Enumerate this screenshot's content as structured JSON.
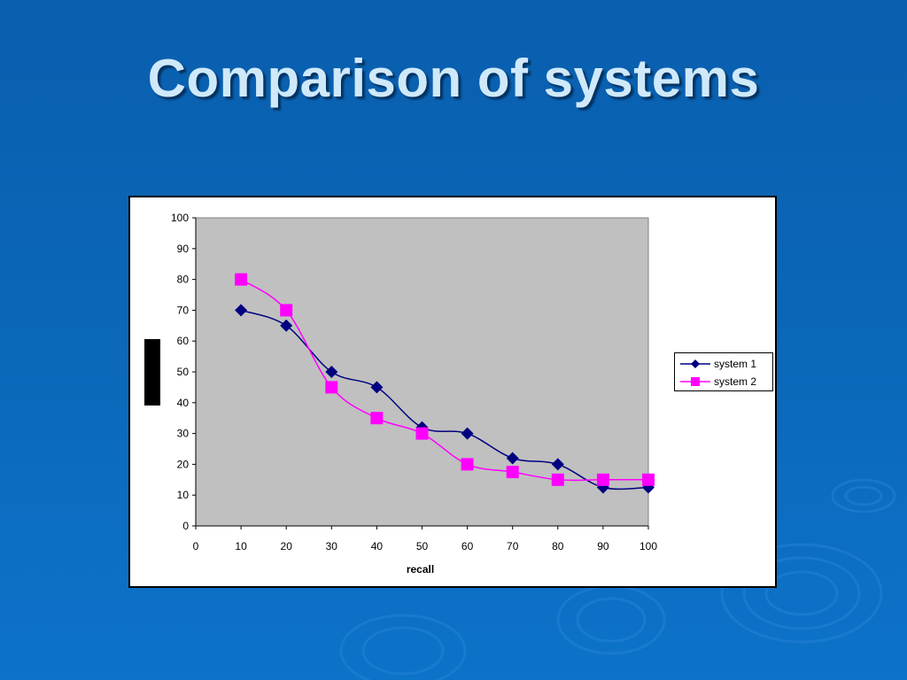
{
  "slide": {
    "title": "Comparison of systems"
  },
  "colors": {
    "background": "#0b66b8",
    "series1": "#000080",
    "series2": "#ff00ff",
    "plot_bg": "#c0c0c0"
  },
  "chart_data": {
    "type": "line",
    "title": "",
    "xlabel": "recall",
    "ylabel": "",
    "xlim": [
      0,
      100
    ],
    "ylim": [
      0,
      100
    ],
    "x_ticks": [
      0,
      10,
      20,
      30,
      40,
      50,
      60,
      70,
      80,
      90,
      100
    ],
    "y_ticks": [
      0,
      10,
      20,
      30,
      40,
      50,
      60,
      70,
      80,
      90,
      100
    ],
    "grid": false,
    "legend_position": "right",
    "series": [
      {
        "name": "system 1",
        "marker": "diamond",
        "color": "#000080",
        "x": [
          10,
          20,
          30,
          40,
          50,
          60,
          70,
          80,
          90,
          100
        ],
        "y": [
          70,
          65,
          50,
          45,
          32,
          30,
          22,
          20,
          12.5,
          12.5
        ]
      },
      {
        "name": "system 2",
        "marker": "square",
        "color": "#ff00ff",
        "x": [
          10,
          20,
          30,
          40,
          50,
          60,
          70,
          80,
          90,
          100
        ],
        "y": [
          80,
          70,
          45,
          35,
          30,
          20,
          17.5,
          15,
          15,
          15
        ]
      }
    ]
  }
}
